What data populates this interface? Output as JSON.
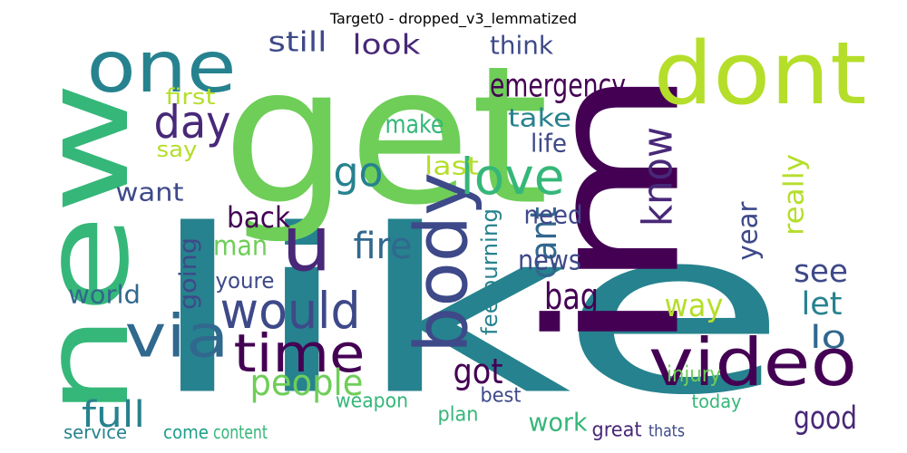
{
  "title": "Target0 - dropped_v3_lemmatized",
  "words": [
    "like",
    "get",
    "im",
    "new",
    "dont",
    "one",
    "video",
    "body",
    "would",
    "time",
    "via",
    "u",
    "day",
    "go",
    "love",
    "people",
    "know",
    "emergency",
    "still",
    "look",
    "think",
    "make",
    "take",
    "life",
    "want",
    "back",
    "man",
    "fire",
    "cant",
    "got",
    "bag",
    "full",
    "world",
    "news",
    "see",
    "let",
    "lo",
    "good",
    "way",
    "year",
    "really",
    "work",
    "first",
    "say",
    "going",
    "youre",
    "feelburning",
    "last",
    "need",
    "injury",
    "service",
    "come",
    "content",
    "weapon",
    "plan",
    "best",
    "great",
    "thats",
    "today"
  ]
}
